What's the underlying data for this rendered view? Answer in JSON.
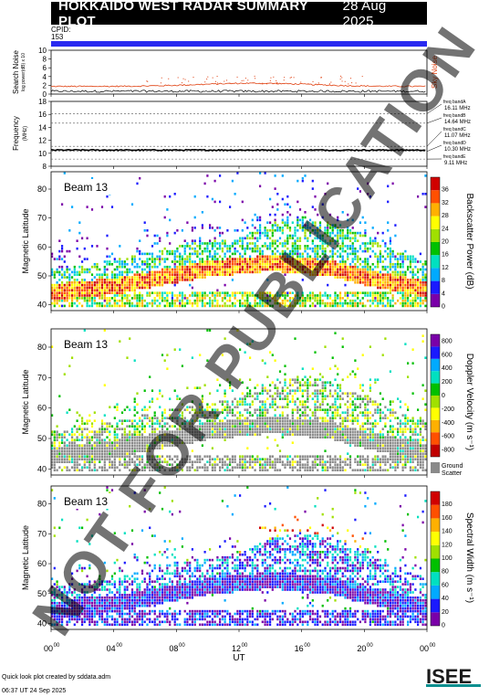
{
  "header": {
    "title": "HOKKAIDO WEST RADAR SUMMARY PLOT",
    "date": "28 Aug 2025",
    "cpid_label": "CPID:",
    "cpid_value": "153"
  },
  "noise_panel": {
    "ylabel": "Search Noise",
    "ylabel_sub": "log power(dB) x 10",
    "series_label": "Sky Noise",
    "yticks": [
      "0",
      "2",
      "4",
      "6",
      "8",
      "10"
    ],
    "ylim": [
      0,
      10
    ],
    "sky_noise_level": 1.6,
    "search_noise_level": 0.4
  },
  "freq_panel": {
    "ylabel": "Frequency",
    "ylabel_unit": "(MHz)",
    "yticks": [
      "8",
      "10",
      "12",
      "14",
      "16",
      "18"
    ],
    "ylim": [
      8,
      18
    ],
    "operating_freq": 10.5,
    "bands": [
      {
        "name": "freq bandA",
        "freq": "16.11 MHz",
        "value": 16.11
      },
      {
        "name": "freq bandB",
        "freq": "14.64 MHz",
        "value": 14.64
      },
      {
        "name": "freq bandC",
        "freq": "11.07 MHz",
        "value": 11.07
      },
      {
        "name": "freq bandD",
        "freq": "10.30 MHz",
        "value": 10.3
      },
      {
        "name": "freq bandE",
        "freq": "9.11 MHz",
        "value": 9.11
      }
    ]
  },
  "colors": {
    "power": [
      "#7a00a8",
      "#1a1aff",
      "#00aaff",
      "#00e0c0",
      "#00c000",
      "#a0e000",
      "#ffff00",
      "#ffb000",
      "#ff5000",
      "#d00000"
    ],
    "velocity": [
      "#c00000",
      "#ff5000",
      "#ffb000",
      "#ffff00",
      "#a0e000",
      "#00c000",
      "#00e0c0",
      "#00aaff",
      "#1a1aff",
      "#7a00a8"
    ],
    "width": [
      "#7a00a8",
      "#1a1aff",
      "#00aaff",
      "#00e0c0",
      "#00c000",
      "#a0e000",
      "#ffff00",
      "#ffb000",
      "#ff5000",
      "#d00000"
    ],
    "ground_scatter": "#8a8a8a",
    "sky_noise": "#e04010"
  },
  "panels": [
    {
      "beam": "Beam 13",
      "ylabel": "Magnetic Latitude",
      "yticks": [
        "40",
        "50",
        "60",
        "70",
        "80"
      ],
      "ylim": [
        38,
        86
      ],
      "cbar_label": "Backscatter Power (dB)",
      "cbar_ticks": [
        "0",
        "4",
        "8",
        "12",
        "16",
        "20",
        "24",
        "28",
        "32",
        "36"
      ],
      "param": "power"
    },
    {
      "beam": "Beam 13",
      "ylabel": "Magnetic Latitude",
      "yticks": [
        "40",
        "50",
        "60",
        "70",
        "80"
      ],
      "ylim": [
        38,
        86
      ],
      "cbar_label": "Doppler Velocity (m s⁻¹)",
      "cbar_ticks": [
        "-800",
        "-600",
        "-400",
        "-200",
        "0",
        "200",
        "400",
        "600",
        "800"
      ],
      "ground_label": "Ground",
      "ground_label2": "Scatter",
      "param": "velocity"
    },
    {
      "beam": "Beam 13",
      "ylabel": "Magnetic Latitude",
      "yticks": [
        "40",
        "50",
        "60",
        "70",
        "80"
      ],
      "ylim": [
        38,
        86
      ],
      "cbar_label": "Spectral Width (m s⁻¹)",
      "cbar_ticks": [
        "0",
        "20",
        "40",
        "60",
        "80",
        "100",
        "120",
        "140",
        "160",
        "180"
      ],
      "param": "width"
    }
  ],
  "x_axis": {
    "label": "UT",
    "ticks": [
      {
        "hour": "00",
        "sup": "00"
      },
      {
        "hour": "04",
        "sup": "00"
      },
      {
        "hour": "08",
        "sup": "00"
      },
      {
        "hour": "12",
        "sup": "00"
      },
      {
        "hour": "16",
        "sup": "00"
      },
      {
        "hour": "20",
        "sup": "00"
      },
      {
        "hour": "00",
        "sup": "00"
      }
    ],
    "xlim": [
      0,
      24
    ]
  },
  "chart_data": {
    "type": "heatmap",
    "title": "HOKKAIDO WEST RADAR SUMMARY PLOT",
    "xlabel": "UT",
    "ylabel": "Magnetic Latitude",
    "xlim": [
      0,
      24
    ],
    "ylim": [
      38,
      86
    ],
    "series": [
      {
        "name": "Backscatter Power (dB)",
        "range": [
          0,
          36
        ]
      },
      {
        "name": "Doppler Velocity (m s⁻¹)",
        "range": [
          -800,
          800
        ]
      },
      {
        "name": "Spectral Width (m s⁻¹)",
        "range": [
          0,
          180
        ]
      }
    ],
    "ionospheric_band_lat": [
      [
        0,
        44
      ],
      [
        2,
        45
      ],
      [
        4,
        46
      ],
      [
        6,
        48
      ],
      [
        8,
        50
      ],
      [
        10,
        52
      ],
      [
        12,
        53
      ],
      [
        14,
        54
      ],
      [
        16,
        53
      ],
      [
        18,
        52
      ],
      [
        20,
        49
      ],
      [
        22,
        47
      ],
      [
        24,
        45
      ]
    ],
    "scatter_upper_lat": [
      [
        0,
        52
      ],
      [
        4,
        55
      ],
      [
        8,
        60
      ],
      [
        12,
        63
      ],
      [
        14,
        68
      ],
      [
        16,
        70
      ],
      [
        18,
        68
      ],
      [
        20,
        64
      ],
      [
        22,
        58
      ],
      [
        24,
        55
      ]
    ]
  },
  "footer": {
    "credit": "Quick look plot created by sddata.adm",
    "timestamp": "06:37 UT 24 Sep 2025",
    "logo_text": "ISEE",
    "watermark": "NOT FOR PUBLICATION"
  }
}
